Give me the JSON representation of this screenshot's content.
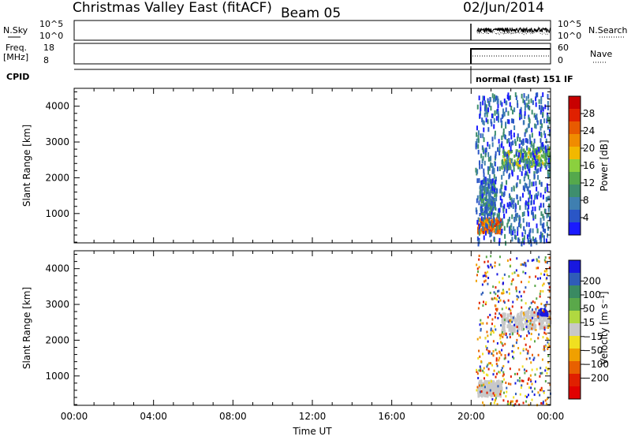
{
  "header": {
    "station": "Christmas Valley East (fitACF)",
    "beam": "Beam 05",
    "date": "02/Jun/2014"
  },
  "strip_labels": {
    "nsky": "N.Sky",
    "nsky_ticks": [
      "10^5",
      "10^0"
    ],
    "nsearch": "N.Search",
    "nsearch_ticks": [
      "10^5",
      "10^0"
    ],
    "freq_line1": "Freq.",
    "freq_line2": "[MHz]",
    "freq_ticks": [
      "18",
      "8"
    ],
    "nave": "Nave",
    "nave_ticks": [
      "60",
      "0"
    ],
    "cpid": "CPID",
    "cpid_text": "normal (fast)  151  IF"
  },
  "chart_data": [
    {
      "type": "heatmap",
      "title": "",
      "ylabel": "Slant Range [km]",
      "xlabel": "",
      "xlim": [
        0,
        24
      ],
      "ylim": [
        180,
        4500
      ],
      "yticks": [
        1000,
        2000,
        3000,
        4000
      ],
      "colorbar": {
        "label": "Power [dB]",
        "ticks": [
          4,
          8,
          12,
          16,
          20,
          24,
          28
        ],
        "range": [
          0,
          32
        ],
        "colors": [
          "#1a1aff",
          "#2a56c6",
          "#3f7fb0",
          "#3e8e6e",
          "#55a84c",
          "#8bd03e",
          "#f2b800",
          "#f08c00",
          "#e85a00",
          "#e02000",
          "#c80000"
        ]
      },
      "data_regions": [
        {
          "t": [
            20.3,
            21.5
          ],
          "range_km": [
            500,
            900
          ],
          "power_db": 24
        },
        {
          "t": [
            20.4,
            21.2
          ],
          "range_km": [
            1000,
            2000
          ],
          "power_db": 8
        },
        {
          "t": [
            21.5,
            24.0
          ],
          "range_km": [
            2300,
            2800
          ],
          "power_db": 14
        },
        {
          "t": [
            20.2,
            24.0
          ],
          "range_km": [
            200,
            4400
          ],
          "power_db": 6
        }
      ]
    },
    {
      "type": "heatmap",
      "title": "",
      "ylabel": "Slant Range [km]",
      "xlabel": "Time UT",
      "xlim": [
        0,
        24
      ],
      "ylim": [
        180,
        4500
      ],
      "xticks": [
        "00:00",
        "04:00",
        "08:00",
        "12:00",
        "16:00",
        "20:00",
        "00:00"
      ],
      "yticks": [
        1000,
        2000,
        3000,
        4000
      ],
      "colorbar": {
        "label": "Velocity [m s⁻¹]",
        "ticks": [
          "200",
          "100",
          "50",
          "15",
          "−15",
          "−50",
          "−100",
          "−200"
        ],
        "colors": [
          "#1818e0",
          "#2f5cb8",
          "#3a8a62",
          "#5aa84a",
          "#b0d840",
          "#c8c8c8",
          "#f0e020",
          "#f0a000",
          "#e86000",
          "#e02000",
          "#e00000"
        ]
      },
      "data_regions": [
        {
          "t": [
            20.3,
            21.5
          ],
          "range_km": [
            500,
            900
          ],
          "velocity": 0
        },
        {
          "t": [
            21.5,
            24.0
          ],
          "range_km": [
            2300,
            2800
          ],
          "velocity": 0
        },
        {
          "t": [
            23.3,
            23.8
          ],
          "range_km": [
            2750,
            2900
          ],
          "velocity": 150
        }
      ]
    }
  ]
}
